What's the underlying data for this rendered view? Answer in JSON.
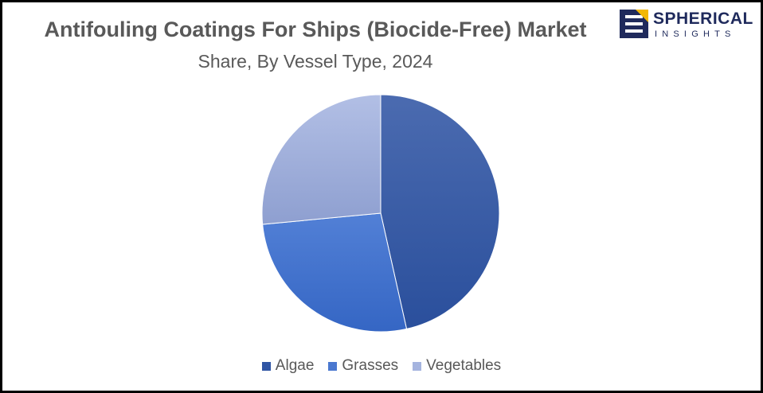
{
  "header": {
    "title": "Antifouling Coatings For Ships (Biocide-Free) Market",
    "subtitle": "Share, By Vessel Type, 2024"
  },
  "logo": {
    "name": "SPHERICAL",
    "sub": "INSIGHTS",
    "icon": "spherical-insights-logo-mark",
    "colors": {
      "navy": "#1f2a5c",
      "gold": "#f2b705"
    }
  },
  "chart_data": {
    "type": "pie",
    "title": "Antifouling Coatings For Ships (Biocide-Free) Market",
    "subtitle": "Share, By Vessel Type, 2024",
    "categories": [
      "Algae",
      "Grasses",
      "Vegetables"
    ],
    "values": [
      46.5,
      27.0,
      26.5
    ],
    "unit": "%",
    "start_angle": "12 o'clock",
    "direction": "clockwise",
    "legend": "bottom",
    "colors": [
      "#2f55a4",
      "#4a78d0",
      "#a5b4df"
    ]
  }
}
